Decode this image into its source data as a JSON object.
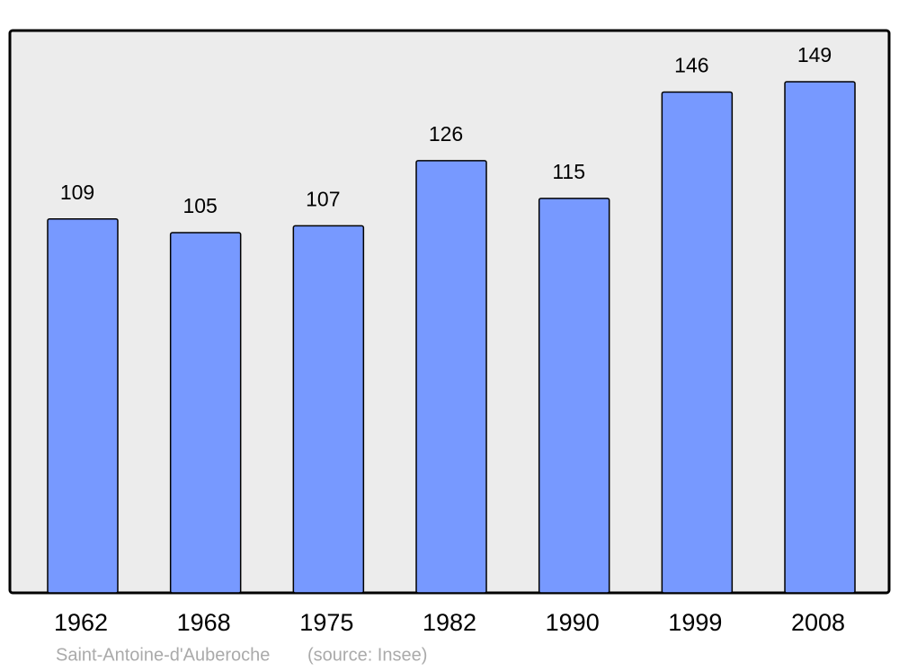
{
  "chart_data": {
    "type": "bar",
    "categories": [
      "1962",
      "1968",
      "1975",
      "1982",
      "1990",
      "1999",
      "2008"
    ],
    "values": [
      109,
      105,
      107,
      126,
      115,
      146,
      149
    ],
    "color": "#7799ff",
    "caption": "Saint-Antoine-d'Auberoche",
    "source": "(source: Insee)"
  }
}
